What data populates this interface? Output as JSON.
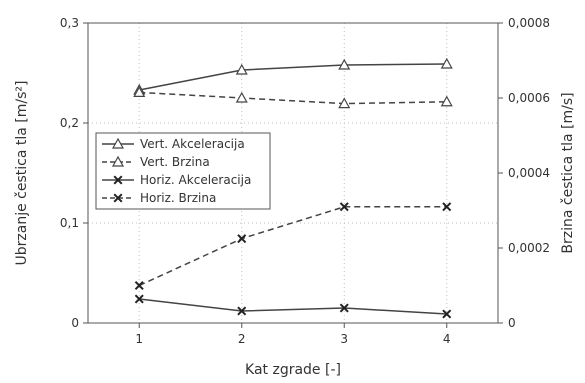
{
  "chart_data": {
    "type": "line",
    "x": [
      1,
      2,
      3,
      4
    ],
    "xlabel": "Kat zgrade [-]",
    "ylabel": "Ubrzanje čestica tla [m/s²]",
    "y2label": "Brzina čestica tla [m/s]",
    "xlim": [
      0.5,
      4.5
    ],
    "ylim": [
      0,
      0.3
    ],
    "y2lim": [
      0,
      0.0008
    ],
    "x_ticks": [
      "1",
      "2",
      "3",
      "4"
    ],
    "y_ticks": [
      "0",
      "0,1",
      "0,2",
      "0,3"
    ],
    "y2_ticks": [
      "0",
      "0,0002",
      "0,0004",
      "0,0006",
      "0,0008"
    ],
    "grid": true,
    "legend_position": "center-left",
    "series": [
      {
        "name": "Vert. Akceleracija",
        "axis": "left",
        "values": [
          0.233,
          0.253,
          0.258,
          0.259
        ],
        "marker": "triangle",
        "dash": "solid"
      },
      {
        "name": "Vert. Brzina",
        "axis": "right",
        "values": [
          0.000615,
          0.0006,
          0.000585,
          0.00059
        ],
        "marker": "triangle",
        "dash": "dashed"
      },
      {
        "name": "Horiz. Akceleracija",
        "axis": "left",
        "values": [
          0.024,
          0.012,
          0.015,
          0.009
        ],
        "marker": "x",
        "dash": "solid"
      },
      {
        "name": "Horiz. Brzina",
        "axis": "right",
        "values": [
          0.0001,
          0.000225,
          0.00031,
          0.00031
        ],
        "marker": "x",
        "dash": "dashed"
      }
    ]
  },
  "colors": {
    "line": "#444444",
    "grid": "#bfbfbf",
    "axis": "#555555",
    "text": "#333333"
  }
}
